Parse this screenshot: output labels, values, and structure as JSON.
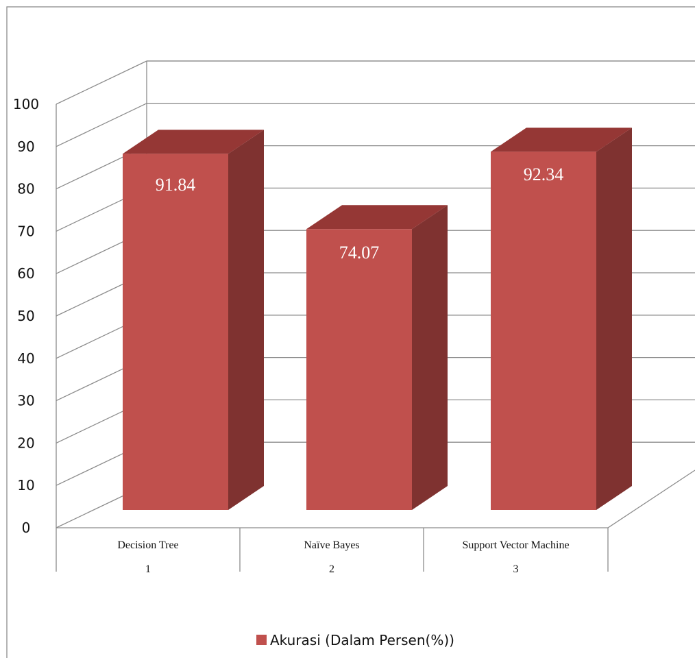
{
  "chart_data": {
    "type": "bar",
    "title": "",
    "xlabel": "",
    "ylabel": "",
    "categories": [
      "Decision Tree",
      "Naïve Bayes",
      "Support Vector Machine"
    ],
    "category_numbers": [
      "1",
      "2",
      "3"
    ],
    "series": [
      {
        "name": "Akurasi (Dalam Persen(%))",
        "values": [
          91.84,
          74.07,
          92.34
        ]
      }
    ],
    "data_labels": [
      "91.84",
      "74.07",
      "92.34"
    ],
    "yticks": [
      "0",
      "10",
      "20",
      "30",
      "40",
      "50",
      "60",
      "70",
      "80",
      "90",
      "100"
    ],
    "ylim": [
      0,
      100
    ],
    "grid": true,
    "style": "3d-column",
    "legend_position": "bottom",
    "colors": {
      "bar_front": "#C0504D",
      "bar_top": "#953735",
      "bar_side": "#7F3230"
    }
  }
}
